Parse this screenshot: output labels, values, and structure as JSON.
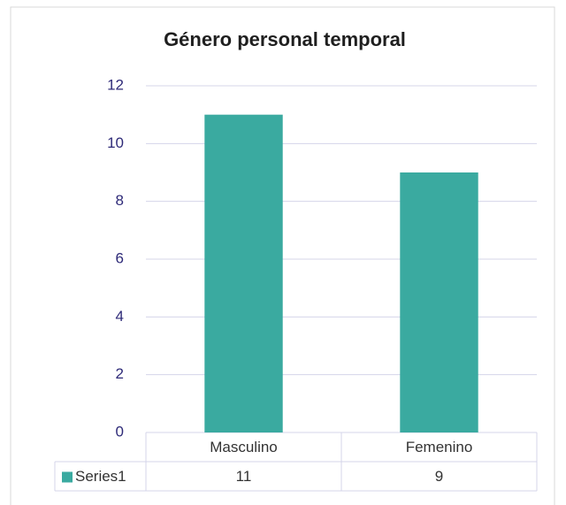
{
  "chart_data": {
    "type": "bar",
    "title": "Género personal temporal",
    "categories": [
      "Masculino",
      "Femenino"
    ],
    "series": [
      {
        "name": "Series1",
        "color": "#3aaaa0",
        "values": [
          11,
          9
        ]
      }
    ],
    "ylim": [
      0,
      12
    ],
    "yticks": [
      0,
      2,
      4,
      6,
      8,
      10,
      12
    ],
    "grid": true,
    "data_table": true
  }
}
